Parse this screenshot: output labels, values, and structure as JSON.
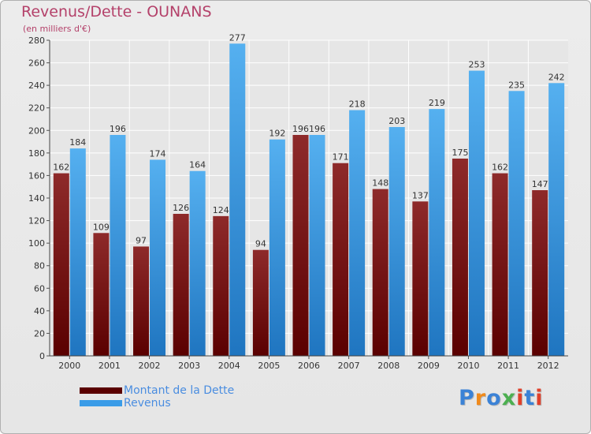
{
  "header": {
    "title": "Revenus/Dette - OUNANS",
    "subtitle": "(en milliers d'€)"
  },
  "chart_data": {
    "type": "bar",
    "title": "Revenus/Dette - OUNANS",
    "subtitle": "(en milliers d'€)",
    "categories": [
      "2000",
      "2001",
      "2002",
      "2003",
      "2004",
      "2005",
      "2006",
      "2007",
      "2008",
      "2009",
      "2010",
      "2011",
      "2012"
    ],
    "series": [
      {
        "name": "Montant de la Dette",
        "color": "#7a1010",
        "values": [
          162,
          109,
          97,
          126,
          124,
          94,
          196,
          171,
          148,
          137,
          175,
          162,
          147
        ]
      },
      {
        "name": "Revenus",
        "color": "#3a9ce8",
        "values": [
          184,
          196,
          174,
          164,
          277,
          192,
          196,
          218,
          203,
          219,
          253,
          235,
          242
        ]
      }
    ],
    "ylim": [
      0,
      280
    ],
    "yticks": [
      0,
      20,
      40,
      60,
      80,
      100,
      120,
      140,
      160,
      180,
      200,
      220,
      240,
      260,
      280
    ],
    "grid": true,
    "legend": "bottom-left",
    "xlabel": "",
    "ylabel": ""
  },
  "legend": {
    "items": [
      {
        "label": "Montant de la Dette",
        "color": "#5a0000"
      },
      {
        "label": "Revenus",
        "color": "#3a9ce8"
      }
    ]
  },
  "logo": {
    "text": "Proxiti",
    "letter_colors": [
      "#3b82d6",
      "#f08a1c",
      "#3b82d6",
      "#4caf50",
      "#e0402a",
      "#3b82d6",
      "#e0402a"
    ]
  }
}
